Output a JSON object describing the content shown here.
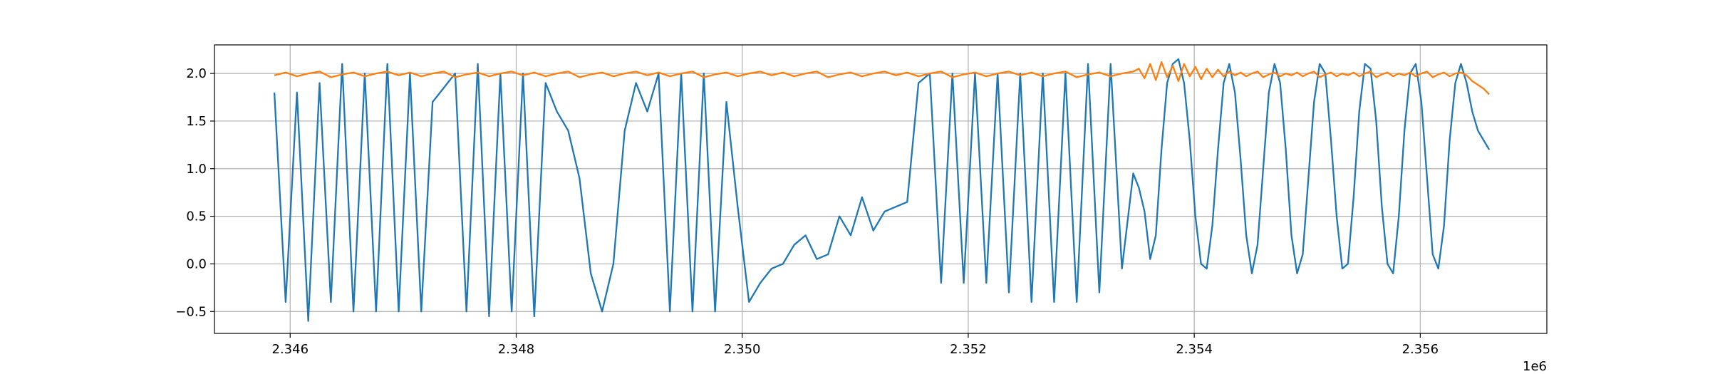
{
  "chart_data": {
    "type": "line",
    "x_offset_label": "1e6",
    "x": [
      2345860,
      2345960,
      2346060,
      2346160,
      2346260,
      2346360,
      2346460,
      2346560,
      2346660,
      2346760,
      2346860,
      2346960,
      2347060,
      2347160,
      2347260,
      2347360,
      2347460,
      2347560,
      2347660,
      2347760,
      2347860,
      2347960,
      2348060,
      2348160,
      2348260,
      2348360,
      2348460,
      2348560,
      2348660,
      2348760,
      2348860,
      2348960,
      2349060,
      2349160,
      2349260,
      2349360,
      2349460,
      2349560,
      2349660,
      2349760,
      2349860,
      2349960,
      2350060,
      2350160,
      2350260,
      2350360,
      2350460,
      2350560,
      2350660,
      2350760,
      2350860,
      2350960,
      2351060,
      2351160,
      2351260,
      2351360,
      2351460,
      2351560,
      2351660,
      2351760,
      2351860,
      2351960,
      2352060,
      2352160,
      2352260,
      2352360,
      2352460,
      2352560,
      2352660,
      2352760,
      2352860,
      2352960,
      2353060,
      2353160,
      2353260,
      2353360,
      2353460,
      2353510,
      2353560,
      2353610,
      2353660,
      2353710,
      2353760,
      2353810,
      2353860,
      2353910,
      2353960,
      2354010,
      2354060,
      2354110,
      2354160,
      2354210,
      2354260,
      2354310,
      2354360,
      2354410,
      2354460,
      2354510,
      2354560,
      2354610,
      2354660,
      2354710,
      2354760,
      2354810,
      2354860,
      2354910,
      2354960,
      2355010,
      2355060,
      2355110,
      2355160,
      2355210,
      2355260,
      2355310,
      2355360,
      2355410,
      2355460,
      2355510,
      2355560,
      2355610,
      2355660,
      2355710,
      2355760,
      2355810,
      2355860,
      2355910,
      2355960,
      2356010,
      2356060,
      2356110,
      2356160,
      2356210,
      2356260,
      2356310,
      2356360,
      2356410,
      2356460,
      2356510,
      2356560,
      2356610
    ],
    "series": [
      {
        "color": "#1f77b4",
        "values": [
          1.8,
          -0.4,
          1.8,
          -0.6,
          1.9,
          -0.4,
          2.1,
          -0.5,
          2.0,
          -0.5,
          2.1,
          -0.5,
          2.0,
          -0.5,
          1.7,
          1.85,
          2.0,
          -0.5,
          2.1,
          -0.55,
          2.0,
          -0.5,
          2.0,
          -0.55,
          1.9,
          1.6,
          1.4,
          0.9,
          -0.1,
          -0.5,
          0.0,
          1.4,
          1.9,
          1.6,
          2.0,
          -0.5,
          2.0,
          -0.5,
          2.0,
          -0.5,
          1.7,
          0.6,
          -0.4,
          -0.2,
          -0.05,
          0.0,
          0.2,
          0.3,
          0.05,
          0.1,
          0.5,
          0.3,
          0.7,
          0.35,
          0.55,
          0.6,
          0.65,
          1.9,
          2.0,
          -0.2,
          2.0,
          -0.2,
          2.0,
          -0.2,
          2.0,
          -0.3,
          2.0,
          -0.4,
          2.0,
          -0.4,
          2.0,
          -0.4,
          2.1,
          -0.3,
          2.1,
          -0.05,
          0.95,
          0.8,
          0.55,
          0.05,
          0.3,
          1.2,
          1.9,
          2.1,
          2.15,
          1.9,
          1.3,
          0.5,
          0.0,
          -0.05,
          0.4,
          1.2,
          1.9,
          2.1,
          1.8,
          1.1,
          0.3,
          -0.1,
          0.2,
          1.0,
          1.8,
          2.1,
          1.9,
          1.2,
          0.3,
          -0.1,
          0.1,
          0.9,
          1.7,
          2.1,
          2.0,
          1.3,
          0.5,
          -0.05,
          0.0,
          0.7,
          1.6,
          2.1,
          2.05,
          1.5,
          0.6,
          0.0,
          -0.1,
          0.5,
          1.4,
          2.0,
          2.1,
          1.7,
          0.9,
          0.1,
          -0.05,
          0.4,
          1.3,
          1.9,
          2.1,
          1.9,
          1.6,
          1.4,
          1.3,
          1.2
        ]
      },
      {
        "color": "#ff7f0e",
        "values": [
          1.98,
          2.01,
          1.97,
          2.0,
          2.02,
          1.96,
          1.99,
          2.01,
          1.97,
          2.0,
          2.02,
          1.98,
          2.01,
          1.97,
          2.0,
          2.02,
          1.96,
          1.99,
          2.01,
          1.97,
          2.0,
          2.02,
          1.98,
          2.01,
          1.97,
          2.0,
          2.02,
          1.96,
          1.99,
          2.01,
          1.97,
          2.0,
          2.02,
          1.98,
          2.01,
          1.97,
          2.0,
          2.02,
          1.96,
          1.99,
          2.01,
          1.97,
          2.0,
          2.02,
          1.98,
          2.01,
          1.97,
          2.0,
          2.02,
          1.96,
          1.99,
          2.01,
          1.97,
          2.0,
          2.02,
          1.98,
          2.01,
          1.97,
          2.0,
          2.02,
          1.96,
          1.99,
          2.01,
          1.97,
          2.0,
          2.02,
          1.98,
          2.01,
          1.97,
          2.0,
          2.02,
          1.96,
          1.99,
          2.01,
          1.97,
          2.0,
          2.02,
          2.05,
          1.95,
          2.1,
          1.93,
          2.12,
          1.96,
          2.08,
          1.92,
          2.1,
          1.97,
          2.07,
          1.94,
          2.05,
          1.96,
          2.04,
          1.97,
          2.02,
          1.98,
          2.01,
          1.97,
          2.0,
          2.02,
          1.96,
          1.99,
          2.01,
          1.97,
          2.0,
          1.98,
          2.01,
          1.97,
          2.0,
          2.02,
          1.96,
          1.99,
          2.01,
          1.97,
          2.0,
          1.98,
          2.01,
          1.97,
          2.0,
          2.02,
          1.96,
          1.99,
          2.01,
          1.97,
          2.0,
          1.98,
          2.01,
          1.97,
          2.0,
          2.02,
          1.96,
          1.99,
          2.01,
          1.97,
          2.0,
          2.01,
          1.98,
          1.92,
          1.88,
          1.84,
          1.78
        ]
      }
    ],
    "xlim": [
      2345330,
      2357120
    ],
    "ylim": [
      -0.73,
      2.3
    ],
    "xticks": [
      {
        "value": 2346000,
        "label": "2.346"
      },
      {
        "value": 2348000,
        "label": "2.348"
      },
      {
        "value": 2350000,
        "label": "2.350"
      },
      {
        "value": 2352000,
        "label": "2.352"
      },
      {
        "value": 2354000,
        "label": "2.354"
      },
      {
        "value": 2356000,
        "label": "2.356"
      }
    ],
    "yticks": [
      {
        "value": -0.5,
        "label": "−0.5"
      },
      {
        "value": 0,
        "label": "0.0"
      },
      {
        "value": 0.5,
        "label": "0.5"
      },
      {
        "value": 1,
        "label": "1.0"
      },
      {
        "value": 1.5,
        "label": "1.5"
      },
      {
        "value": 2,
        "label": "2.0"
      }
    ],
    "grid": true
  }
}
